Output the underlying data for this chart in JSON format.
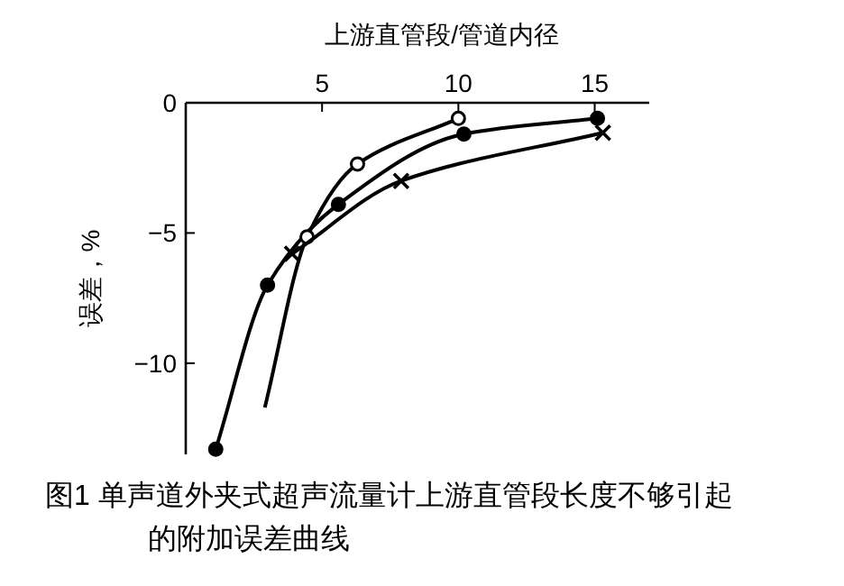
{
  "chart_data": {
    "type": "line",
    "xlabel": "上游直管段/管道内径",
    "ylabel": "误差，%",
    "annotations": [
      "图1  单声道外夹式超声流量计上游直管段长度不够引起的附加误差曲线"
    ],
    "xlim": [
      0,
      17
    ],
    "xticks": [
      5,
      10,
      15
    ],
    "ylim": [
      -13.5,
      0
    ],
    "yticks": [
      0,
      -5,
      -10
    ],
    "grid": false,
    "line_style": "solid",
    "series": [
      {
        "color": "#000000",
        "marker": "circle",
        "x": [
          1.1,
          3.0,
          5.6,
          10.2,
          15.1
        ],
        "values": [
          -13.3,
          -7.0,
          -3.9,
          -1.2,
          -0.6
        ]
      },
      {
        "color": "#000000",
        "marker": "circle",
        "colors": [
          null,
          "#ffffff",
          "#ffffff",
          "#ffffff"
        ],
        "x": [
          2.9,
          4.45,
          6.3,
          10.0
        ],
        "values": [
          -11.7,
          -5.15,
          -2.35,
          -0.6
        ]
      },
      {
        "color": "#000000",
        "marker": "cross",
        "x": [
          3.9,
          7.9,
          15.3
        ],
        "values": [
          -5.8,
          -3.0,
          -1.15
        ]
      }
    ]
  }
}
